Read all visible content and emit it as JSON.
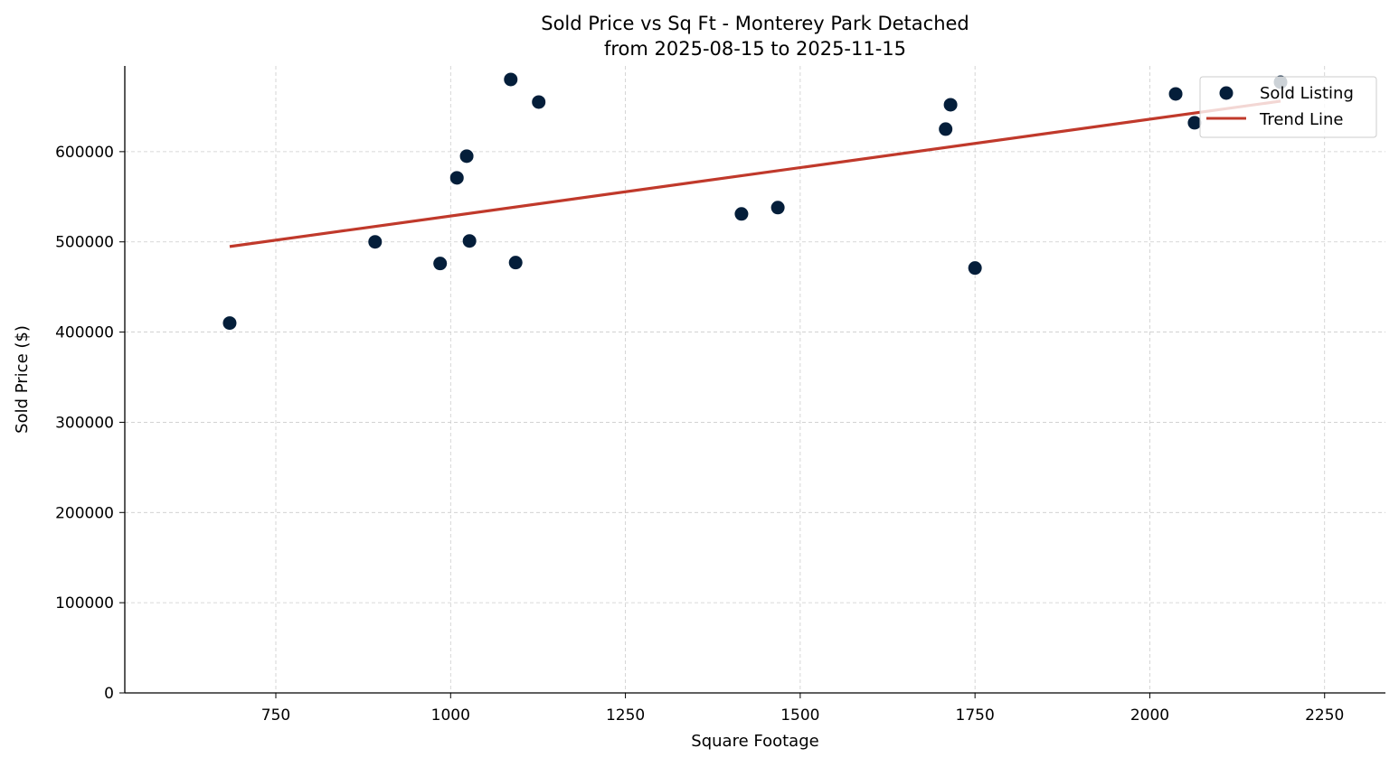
{
  "chart_data": {
    "type": "scatter",
    "title": "Sold Price vs Sq Ft - Monterey Park Detached",
    "subtitle": "from 2025-08-15 to 2025-11-15",
    "xlabel": "Square Footage",
    "ylabel": "Sold Price ($)",
    "xlim": [
      534,
      2337
    ],
    "ylim": [
      0,
      695000
    ],
    "xticks": [
      750,
      1000,
      1250,
      1500,
      1750,
      2000,
      2250
    ],
    "yticks": [
      0,
      100000,
      200000,
      300000,
      400000,
      500000,
      600000
    ],
    "grid": true,
    "legend_position": "top-right",
    "colors": {
      "points": "#041e3a",
      "trend": "#c0392b"
    },
    "series": [
      {
        "name": "Sold Listing",
        "type": "scatter",
        "points": [
          {
            "x": 684,
            "y": 410000
          },
          {
            "x": 892,
            "y": 500000
          },
          {
            "x": 985,
            "y": 476000
          },
          {
            "x": 1009,
            "y": 571000
          },
          {
            "x": 1023,
            "y": 595000
          },
          {
            "x": 1027,
            "y": 501000
          },
          {
            "x": 1086,
            "y": 680000
          },
          {
            "x": 1093,
            "y": 477000
          },
          {
            "x": 1126,
            "y": 655000
          },
          {
            "x": 1416,
            "y": 531000
          },
          {
            "x": 1468,
            "y": 538000
          },
          {
            "x": 1708,
            "y": 625000
          },
          {
            "x": 1715,
            "y": 652000
          },
          {
            "x": 1750,
            "y": 471000
          },
          {
            "x": 2037,
            "y": 664000
          },
          {
            "x": 2064,
            "y": 632000
          },
          {
            "x": 2187,
            "y": 677000
          }
        ]
      },
      {
        "name": "Trend Line",
        "type": "line",
        "points": [
          {
            "x": 684,
            "y": 494800
          },
          {
            "x": 2187,
            "y": 656000
          }
        ]
      }
    ]
  }
}
